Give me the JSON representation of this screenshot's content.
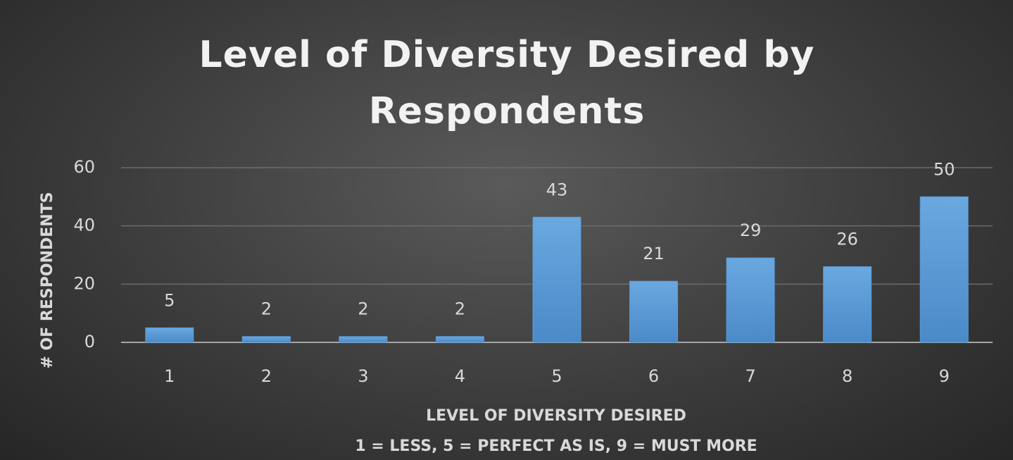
{
  "chart_data": {
    "type": "bar",
    "title": "Level of Diversity Desired by Respondents",
    "ylabel": "# OF RESPONDENTS",
    "xlabel_lines": [
      "LEVEL OF DIVERSITY DESIRED",
      "1 = LESS, 5 = PERFECT AS IS, 9 = MUST MORE"
    ],
    "categories": [
      "1",
      "2",
      "3",
      "4",
      "5",
      "6",
      "7",
      "8",
      "9"
    ],
    "values": [
      5,
      2,
      2,
      2,
      43,
      21,
      29,
      26,
      50
    ],
    "color": "#5b9bd5",
    "ylim": [
      0,
      60
    ],
    "yticks": [
      0,
      20,
      40,
      60
    ],
    "grid": true
  }
}
